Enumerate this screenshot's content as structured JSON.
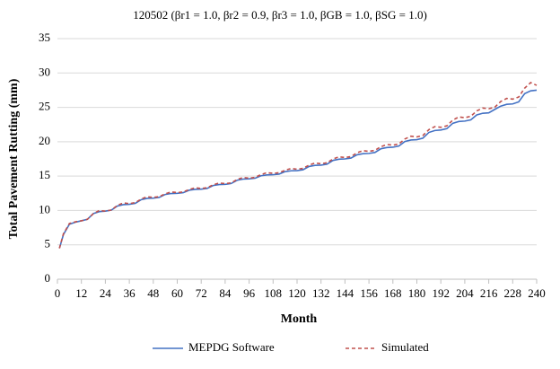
{
  "chart_data": {
    "type": "line",
    "title": "120502 (βr1 = 1.0, βr2 = 0.9, βr3 = 1.0, βGB = 1.0, βSG = 1.0)",
    "x_label": "Month",
    "y_label": "Total Pavement Rutting (mm)",
    "x": [
      1,
      3,
      6,
      9,
      12,
      15,
      18,
      21,
      24,
      27,
      30,
      33,
      36,
      39,
      42,
      45,
      48,
      51,
      54,
      57,
      60,
      63,
      66,
      69,
      72,
      75,
      78,
      81,
      84,
      87,
      90,
      93,
      96,
      99,
      102,
      105,
      108,
      111,
      114,
      117,
      120,
      123,
      126,
      129,
      132,
      135,
      138,
      141,
      144,
      147,
      150,
      153,
      156,
      159,
      162,
      165,
      168,
      171,
      174,
      177,
      180,
      183,
      186,
      189,
      192,
      195,
      198,
      201,
      204,
      207,
      210,
      213,
      216,
      219,
      222,
      225,
      228,
      231,
      234,
      237,
      240
    ],
    "series": [
      {
        "name": "MEPDG Software",
        "color": "#4472c4",
        "dashed": false,
        "values": [
          4.5,
          6.5,
          8.0,
          8.3,
          8.5,
          8.71,
          9.55,
          9.83,
          9.9,
          10.05,
          10.65,
          10.85,
          10.9,
          11.04,
          11.58,
          11.76,
          11.8,
          11.91,
          12.33,
          12.47,
          12.5,
          12.59,
          12.95,
          13.07,
          13.1,
          13.21,
          13.63,
          13.77,
          13.8,
          13.92,
          14.4,
          14.56,
          14.6,
          14.69,
          15.05,
          15.17,
          15.2,
          15.29,
          15.65,
          15.77,
          15.8,
          15.92,
          16.4,
          16.56,
          16.6,
          16.74,
          17.28,
          17.46,
          17.5,
          17.62,
          18.1,
          18.26,
          18.3,
          18.44,
          18.98,
          19.16,
          19.2,
          19.37,
          20.03,
          20.25,
          20.3,
          20.51,
          21.35,
          21.63,
          21.7,
          21.9,
          22.68,
          22.94,
          23.0,
          23.18,
          23.9,
          24.14,
          24.2,
          24.7,
          25.18,
          25.44,
          25.5,
          25.8,
          27.0,
          27.4,
          27.5
        ]
      },
      {
        "name": "Simulated",
        "color": "#c0504d",
        "dashed": true,
        "values": [
          4.5,
          6.6,
          8.1,
          8.35,
          8.5,
          8.71,
          9.55,
          10.0,
          9.9,
          10.07,
          10.73,
          11.1,
          11.0,
          11.14,
          11.68,
          12.0,
          11.9,
          12.01,
          12.43,
          12.7,
          12.6,
          12.69,
          13.05,
          13.3,
          13.2,
          13.31,
          13.73,
          14.0,
          13.9,
          14.02,
          14.5,
          14.8,
          14.7,
          14.81,
          15.23,
          15.5,
          15.4,
          15.49,
          15.85,
          16.1,
          16.0,
          16.12,
          16.6,
          16.9,
          16.8,
          16.94,
          17.48,
          17.8,
          17.7,
          17.84,
          18.38,
          18.7,
          18.6,
          18.74,
          19.28,
          19.6,
          19.5,
          19.68,
          20.4,
          20.8,
          20.7,
          20.91,
          21.75,
          22.2,
          22.1,
          22.31,
          23.15,
          23.6,
          23.5,
          23.7,
          24.48,
          24.9,
          24.8,
          25.01,
          25.85,
          26.3,
          26.2,
          26.5,
          27.8,
          28.6,
          28.2
        ]
      }
    ],
    "xlim": [
      0,
      240
    ],
    "xticks": [
      0,
      12,
      24,
      36,
      48,
      60,
      72,
      84,
      96,
      108,
      120,
      132,
      144,
      156,
      168,
      180,
      192,
      204,
      216,
      228,
      240
    ],
    "ylim": [
      0,
      35
    ],
    "yticks": [
      0,
      5,
      10,
      15,
      20,
      25,
      30,
      35
    ],
    "grid": true,
    "legend": "bottom"
  }
}
